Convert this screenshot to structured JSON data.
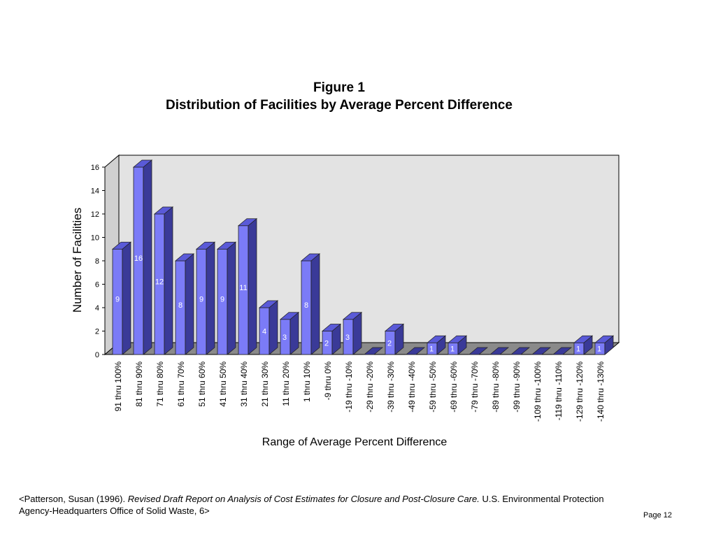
{
  "figure": {
    "label": "Figure 1",
    "title": "Distribution of Facilities by Average Percent Difference"
  },
  "chart_data": {
    "type": "bar",
    "style": "3d",
    "xlabel": "Range of Average Percent Difference",
    "ylabel": "Number of Facilities",
    "ylim": [
      0,
      16
    ],
    "yticks": [
      0,
      2,
      4,
      6,
      8,
      10,
      12,
      14,
      16
    ],
    "grid": false,
    "categories": [
      "91 thru 100%",
      "81 thru 90%",
      "71 thru 80%",
      "61 thru 70%",
      "51 thru 60%",
      "41 thru 50%",
      "31 thru 40%",
      "21 thru 30%",
      "11 thru 20%",
      "1 thru 10%",
      "-9 thru 0%",
      "-19 thru -10%",
      "-29 thru -20%",
      "-39 thru -30%",
      "-49 thru -40%",
      "-59 thru -50%",
      "-69 thru -60%",
      "-79 thru -70%",
      "-89 thru -80%",
      "-99 thru -90%",
      "-109 thru -100%",
      "-119 thru -110%",
      "-129 thru -120%",
      "-140 thru -130%"
    ],
    "values": [
      9,
      16,
      12,
      8,
      9,
      9,
      11,
      4,
      3,
      8,
      2,
      3,
      0,
      2,
      0,
      1,
      1,
      0,
      0,
      0,
      0,
      0,
      1,
      1
    ],
    "data_labels": [
      "9",
      "16",
      "12",
      "8",
      "9",
      "9",
      "11",
      "4",
      "3",
      "8",
      "2",
      "3",
      "",
      "2",
      "",
      "1",
      "1",
      "",
      "",
      "",
      "",
      "",
      "1",
      "1"
    ],
    "colors": {
      "front": "#7b7bf7",
      "side": "#3a3a98",
      "top": "#5a5ad8",
      "wall": "#e3e3e3",
      "floor": "#8a8a8a"
    }
  },
  "citation": {
    "prefix": "<Patterson, Susan (1996). ",
    "title": "Revised Draft Report on Analysis of Cost Estimates for Closure and Post-Closure Care.",
    "suffix": " U.S. Environmental Protection Agency-Headquarters Office of Solid Waste, 6>"
  },
  "page": {
    "label": "Page 12"
  }
}
